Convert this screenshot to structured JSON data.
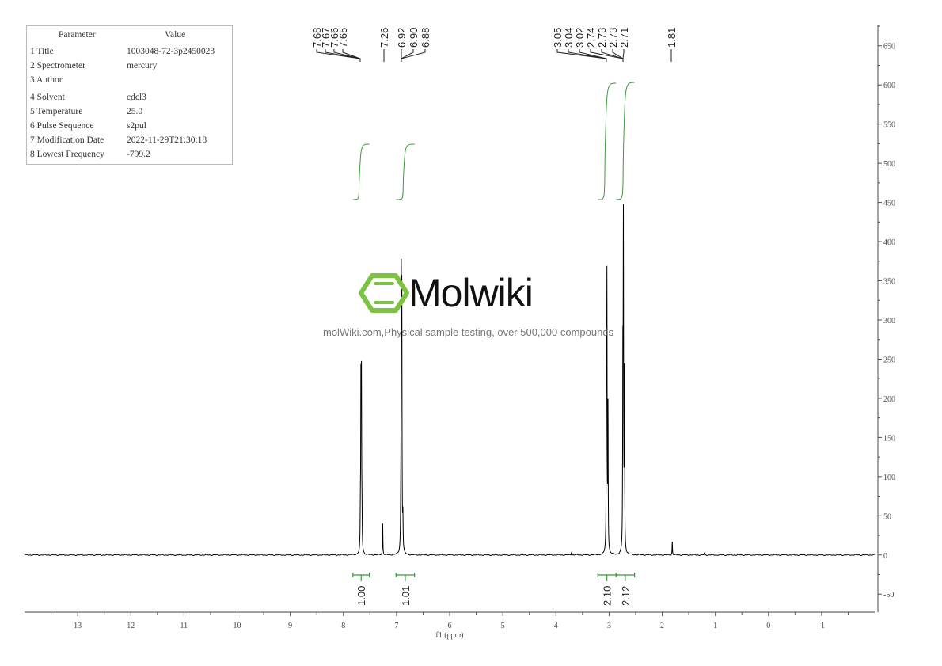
{
  "parameters": {
    "header": [
      "Parameter",
      "Value"
    ],
    "rows": [
      [
        "1 Title",
        "1003048-72-3p2450023"
      ],
      [
        "2 Spectrometer",
        "mercury"
      ],
      [
        "3 Author",
        ""
      ],
      [
        "4 Solvent",
        "cdcl3"
      ],
      [
        "5 Temperature",
        "25.0"
      ],
      [
        "6 Pulse Sequence",
        "s2pul"
      ],
      [
        "7 Modification Date",
        "2022-11-29T21:30:18"
      ],
      [
        "8 Lowest Frequency",
        "-799.2"
      ]
    ]
  },
  "watermark": {
    "logo_text": "Molwiki",
    "caption": "molWiki.com,Physical sample testing, over 500,000 compounds",
    "logo_color": "#7dc242"
  },
  "chart_data": {
    "type": "line",
    "title": "",
    "xlabel": "f1 (ppm)",
    "ylabel": "",
    "xlim": [
      14.0,
      -2.0
    ],
    "ylim": [
      -73,
      676
    ],
    "x_ticks": [
      13,
      12,
      11,
      10,
      9,
      8,
      7,
      6,
      5,
      4,
      3,
      2,
      1,
      0,
      -1
    ],
    "y_ticks": [
      -50,
      0,
      50,
      100,
      150,
      200,
      250,
      300,
      350,
      400,
      450,
      500,
      550,
      600,
      650
    ],
    "grid": false,
    "line_color": "#000000",
    "integral_color": "#3a9a3a",
    "peaks": [
      {
        "ppm": 7.68,
        "intensity": 40
      },
      {
        "ppm": 7.67,
        "intensity": 200
      },
      {
        "ppm": 7.66,
        "intensity": 205
      },
      {
        "ppm": 7.65,
        "intensity": 40
      },
      {
        "ppm": 7.26,
        "intensity": 40
      },
      {
        "ppm": 6.92,
        "intensity": 40
      },
      {
        "ppm": 6.91,
        "intensity": 320
      },
      {
        "ppm": 6.9,
        "intensity": 300
      },
      {
        "ppm": 6.88,
        "intensity": 40
      },
      {
        "ppm": 3.05,
        "intensity": 180
      },
      {
        "ppm": 3.04,
        "intensity": 330
      },
      {
        "ppm": 3.02,
        "intensity": 180
      },
      {
        "ppm": 2.74,
        "intensity": 220
      },
      {
        "ppm": 2.73,
        "intensity": 400
      },
      {
        "ppm": 2.71,
        "intensity": 220
      },
      {
        "ppm": 1.81,
        "intensity": 17
      },
      {
        "ppm": 3.71,
        "intensity": 3
      },
      {
        "ppm": 1.21,
        "intensity": 2
      }
    ],
    "peak_label_groups": [
      [
        "7.68",
        "7.67",
        "7.66",
        "7.65"
      ],
      [
        "7.26"
      ],
      [
        "6.92",
        "6.90",
        "6.88"
      ],
      [
        "3.05",
        "3.04",
        "3.02",
        "2.74",
        "2.73",
        "2.73",
        "2.71"
      ],
      [
        "1.81"
      ]
    ],
    "integrals": [
      {
        "from": 7.82,
        "to": 7.51,
        "value": "1.00"
      },
      {
        "from": 7.01,
        "to": 6.66,
        "value": "1.01"
      },
      {
        "from": 3.21,
        "to": 2.87,
        "value": "2.10"
      },
      {
        "from": 2.87,
        "to": 2.52,
        "value": "2.12"
      }
    ]
  }
}
